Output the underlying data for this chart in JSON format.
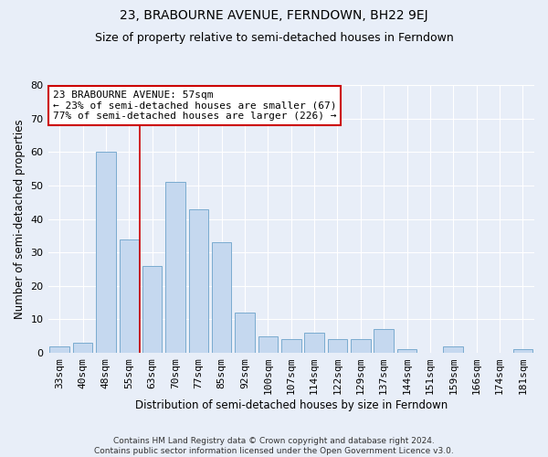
{
  "title": "23, BRABOURNE AVENUE, FERNDOWN, BH22 9EJ",
  "subtitle": "Size of property relative to semi-detached houses in Ferndown",
  "xlabel": "Distribution of semi-detached houses by size in Ferndown",
  "ylabel": "Number of semi-detached properties",
  "categories": [
    "33sqm",
    "40sqm",
    "48sqm",
    "55sqm",
    "63sqm",
    "70sqm",
    "77sqm",
    "85sqm",
    "92sqm",
    "100sqm",
    "107sqm",
    "114sqm",
    "122sqm",
    "129sqm",
    "137sqm",
    "144sqm",
    "151sqm",
    "159sqm",
    "166sqm",
    "174sqm",
    "181sqm"
  ],
  "values": [
    2,
    3,
    60,
    34,
    26,
    51,
    43,
    33,
    12,
    5,
    4,
    6,
    4,
    4,
    7,
    1,
    0,
    2,
    0,
    0,
    1
  ],
  "bar_color": "#c5d8ef",
  "bar_edge_color": "#7aabcf",
  "annotation_line1": "23 BRABOURNE AVENUE: 57sqm",
  "annotation_line2": "← 23% of semi-detached houses are smaller (67)",
  "annotation_line3": "77% of semi-detached houses are larger (226) →",
  "annotation_box_color": "white",
  "annotation_box_edge": "#cc0000",
  "vline_color": "#cc0000",
  "vline_x": 3.45,
  "ylim": [
    0,
    80
  ],
  "yticks": [
    0,
    10,
    20,
    30,
    40,
    50,
    60,
    70,
    80
  ],
  "background_color": "#e8eef8",
  "grid_color": "white",
  "footer": "Contains HM Land Registry data © Crown copyright and database right 2024.\nContains public sector information licensed under the Open Government Licence v3.0.",
  "title_fontsize": 10,
  "subtitle_fontsize": 9,
  "xlabel_fontsize": 8.5,
  "ylabel_fontsize": 8.5,
  "tick_fontsize": 8,
  "annotation_fontsize": 8,
  "footer_fontsize": 6.5
}
